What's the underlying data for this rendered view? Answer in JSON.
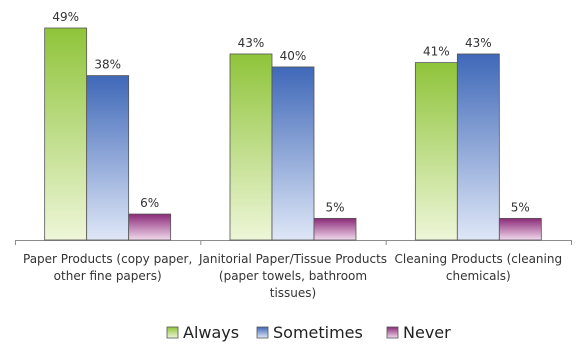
{
  "chart_data": {
    "type": "bar",
    "categories": [
      [
        "Paper Products (copy paper,",
        "other fine papers)"
      ],
      [
        "Janitorial Paper/Tissue Products",
        "(paper towels, bathroom",
        "tissues)"
      ],
      [
        "Cleaning Products (cleaning",
        "chemicals)"
      ]
    ],
    "series": [
      {
        "name": "Always",
        "values": [
          49,
          43,
          41
        ],
        "labels": [
          "49%",
          "43%",
          "41%"
        ],
        "color": "#8fc43a",
        "light": "#eef6d8"
      },
      {
        "name": "Sometimes",
        "values": [
          38,
          40,
          43
        ],
        "labels": [
          "38%",
          "40%",
          "43%"
        ],
        "color": "#3f68b8",
        "light": "#dfe7f7"
      },
      {
        "name": "Never",
        "values": [
          6,
          5,
          5
        ],
        "labels": [
          "6%",
          "5%",
          "5%"
        ],
        "color": "#8a2a78",
        "light": "#f1d9ec"
      }
    ],
    "ylim": [
      0,
      49
    ],
    "grid": false,
    "legend": "bottom"
  }
}
